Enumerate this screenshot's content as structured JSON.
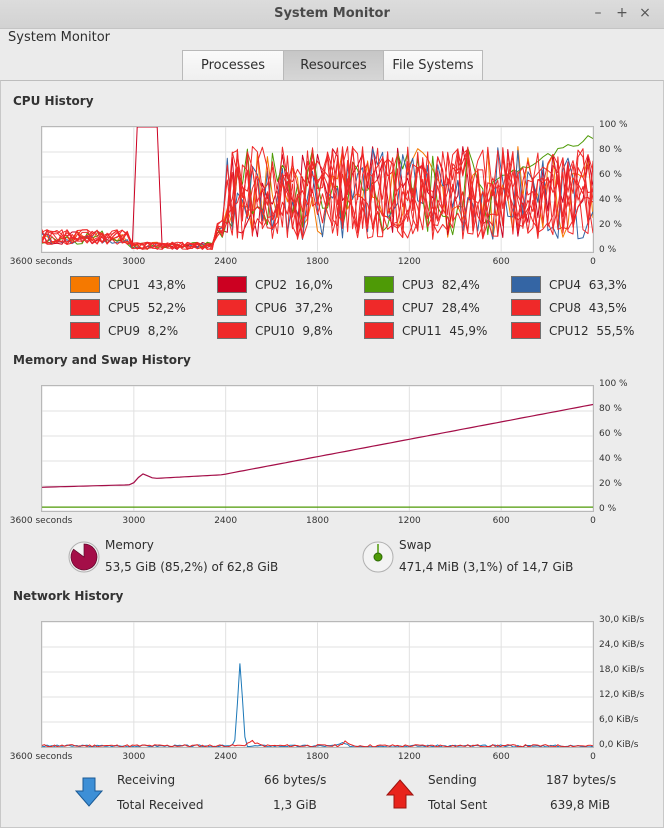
{
  "window": {
    "title": "System Monitor",
    "menu_label": "System Monitor"
  },
  "tabs": [
    {
      "label": "Processes"
    },
    {
      "label": "Resources"
    },
    {
      "label": "File Systems"
    }
  ],
  "cpu": {
    "title": "CPU History",
    "x_ticks": [
      "3600 seconds",
      "3000",
      "2400",
      "1800",
      "1200",
      "600",
      "0"
    ],
    "y_ticks": [
      "100 %",
      "80 %",
      "60 %",
      "40 %",
      "20 %",
      "0 %"
    ],
    "cores": [
      {
        "name": "CPU1",
        "value": "43,8%",
        "color": "#f57900"
      },
      {
        "name": "CPU2",
        "value": "16,0%",
        "color": "#cc0021"
      },
      {
        "name": "CPU3",
        "value": "82,4%",
        "color": "#4e9a06"
      },
      {
        "name": "CPU4",
        "value": "63,3%",
        "color": "#3465a4"
      },
      {
        "name": "CPU5",
        "value": "52,2%",
        "color": "#ef2929"
      },
      {
        "name": "CPU6",
        "value": "37,2%",
        "color": "#ef2929"
      },
      {
        "name": "CPU7",
        "value": "28,4%",
        "color": "#ef2929"
      },
      {
        "name": "CPU8",
        "value": "43,5%",
        "color": "#ef2929"
      },
      {
        "name": "CPU9",
        "value": "8,2%",
        "color": "#ef2929"
      },
      {
        "name": "CPU10",
        "value": "9,8%",
        "color": "#ef2929"
      },
      {
        "name": "CPU11",
        "value": "45,9%",
        "color": "#ef2929"
      },
      {
        "name": "CPU12",
        "value": "55,5%",
        "color": "#ef2929"
      }
    ]
  },
  "memory": {
    "title": "Memory and Swap History",
    "x_ticks": [
      "3600 seconds",
      "3000",
      "2400",
      "1800",
      "1200",
      "600",
      "0"
    ],
    "y_ticks": [
      "100 %",
      "80 %",
      "60 %",
      "40 %",
      "20 %",
      "0 %"
    ],
    "mem_label": "Memory",
    "mem_value": "53,5 GiB (85,2%) of 62,8 GiB",
    "mem_fraction": 0.852,
    "mem_color": "#a40e48",
    "swap_label": "Swap",
    "swap_value": "471,4 MiB (3,1%) of 14,7 GiB",
    "swap_fraction": 0.031,
    "swap_color": "#4e9a06"
  },
  "network": {
    "title": "Network History",
    "x_ticks": [
      "3600 seconds",
      "3000",
      "2400",
      "1800",
      "1200",
      "600",
      "0"
    ],
    "y_ticks": [
      "30,0 KiB/s",
      "24,0 KiB/s",
      "18,0 KiB/s",
      "12,0 KiB/s",
      "6,0 KiB/s",
      "0,0 KiB/s"
    ],
    "receiving_label": "Receiving",
    "receiving_value": "66 bytes/s",
    "total_received_label": "Total Received",
    "total_received_value": "1,3 GiB",
    "sending_label": "Sending",
    "sending_value": "187 bytes/s",
    "total_sent_label": "Total Sent",
    "total_sent_value": "639,8 MiB",
    "receiving_color": "#1c78b8",
    "sending_color": "#e52020"
  }
}
